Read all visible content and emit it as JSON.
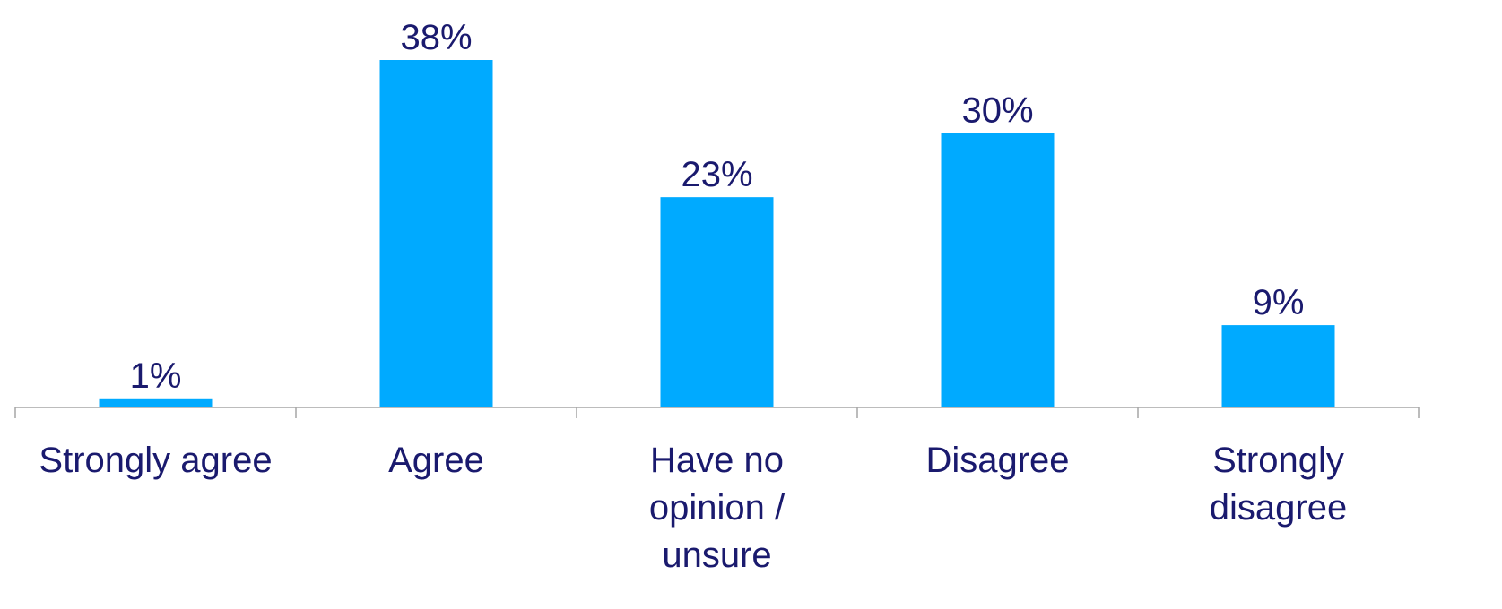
{
  "chart_data": {
    "type": "bar",
    "title": "",
    "xlabel": "",
    "ylabel": "",
    "ylim": [
      0,
      38
    ],
    "grid": false,
    "legend": "none",
    "categories": [
      "Strongly agree",
      "Agree",
      "Have no opinion / unsure",
      "Disagree",
      "Strongly disagree"
    ],
    "category_lines": [
      [
        "Strongly agree"
      ],
      [
        "Agree"
      ],
      [
        "Have no",
        "opinion /",
        "unsure"
      ],
      [
        "Disagree"
      ],
      [
        "Strongly",
        "disagree"
      ]
    ],
    "values": [
      1,
      38,
      23,
      30,
      9
    ],
    "data_labels": [
      "1%",
      "38%",
      "23%",
      "30%",
      "9%"
    ]
  },
  "colors": {
    "bar": "#00AAFF",
    "text": "#1A1A6E",
    "axis": "#A6A6A6"
  }
}
